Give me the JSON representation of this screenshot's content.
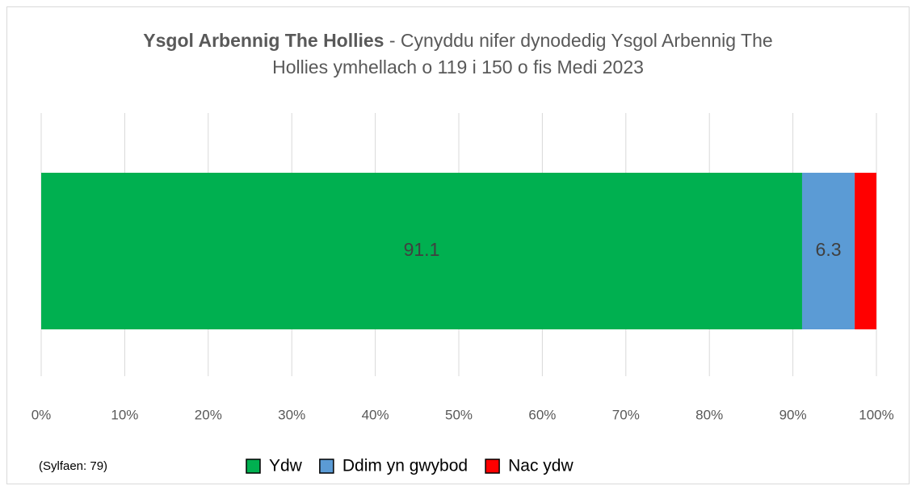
{
  "chart_data": {
    "type": "stacked_bar_horizontal",
    "title_bold": "Ysgol Arbennig The Hollies",
    "title": "- Cynyddu nifer dynodedig Ysgol Arbennig The Hollies ymhellach o 119 i 150 o fis Medi 2023",
    "annotation": "(Sylfaen: 79)",
    "series": [
      {
        "name": "Ydw",
        "color": "#00b050",
        "values": [
          91.1
        ]
      },
      {
        "name": "Ddim yn gwybod",
        "color": "#5b9bd5",
        "values": [
          6.3
        ]
      },
      {
        "name": "Nac ydw",
        "color": "#ff0000",
        "values": [
          2.6
        ]
      }
    ],
    "xlim": [
      0,
      100
    ],
    "xticks": [
      {
        "value": 0,
        "label": "0%"
      },
      {
        "value": 10,
        "label": "10%"
      },
      {
        "value": 20,
        "label": "20%"
      },
      {
        "value": 30,
        "label": "30%"
      },
      {
        "value": 40,
        "label": "40%"
      },
      {
        "value": 50,
        "label": "50%"
      },
      {
        "value": 60,
        "label": "60%"
      },
      {
        "value": 70,
        "label": "70%"
      },
      {
        "value": 80,
        "label": "80%"
      },
      {
        "value": 90,
        "label": "90%"
      },
      {
        "value": 100,
        "label": "100%"
      }
    ],
    "grid": true,
    "legend": "bottom"
  }
}
